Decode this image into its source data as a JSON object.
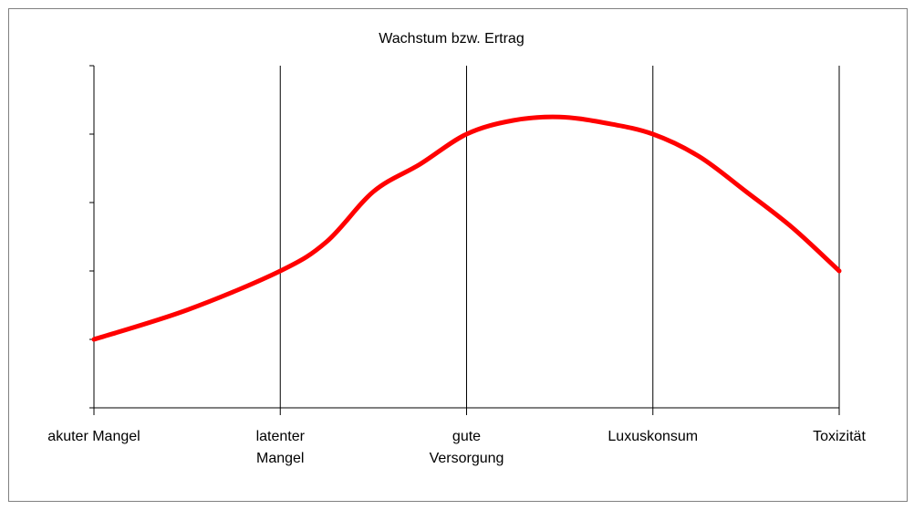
{
  "chart_data": {
    "type": "line",
    "title": "Wachstum bzw. Ertrag",
    "xticks": [
      {
        "value": 0,
        "label": "akuter Mangel"
      },
      {
        "value": 1,
        "label": "latenter\nMangel"
      },
      {
        "value": 2,
        "label": "gute\nVersorgung"
      },
      {
        "value": 3,
        "label": "Luxuskonsum"
      },
      {
        "value": 4,
        "label": "Toxizität"
      }
    ],
    "xlim": [
      0,
      4
    ],
    "ylim": [
      0,
      5
    ],
    "yticks": [
      0,
      1,
      2,
      3,
      4,
      5
    ],
    "grid": true,
    "series": [
      {
        "color": "#ff0000",
        "x": [
          0,
          0.5,
          1,
          1.25,
          1.5,
          1.75,
          2,
          2.25,
          2.5,
          2.75,
          3,
          3.25,
          3.5,
          3.75,
          4
        ],
        "values": [
          1,
          1.43,
          2,
          2.43,
          3.16,
          3.56,
          4,
          4.2,
          4.25,
          4.16,
          4,
          3.67,
          3.16,
          2.63,
          2
        ]
      }
    ]
  }
}
